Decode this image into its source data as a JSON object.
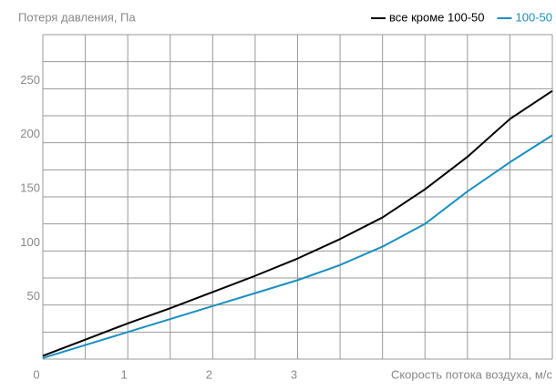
{
  "chart_data": {
    "type": "line",
    "title": "Потеря давления, Па",
    "x_label": "Скорость потока воздуха, м/с",
    "x": [
      0,
      0.5,
      1,
      1.5,
      2,
      2.5,
      3,
      3.5,
      4,
      4.5,
      5,
      5.5,
      6
    ],
    "series": [
      {
        "name": "все кроме 100-50",
        "color": "#000000",
        "values": [
          3,
          18,
          33,
          47,
          62,
          77,
          93,
          111,
          131,
          157,
          187,
          222,
          248
        ]
      },
      {
        "name": "100-50",
        "color": "#1a8fc0",
        "values": [
          1,
          13,
          25,
          37,
          49,
          61,
          73,
          87,
          104,
          125,
          155,
          182,
          207
        ]
      }
    ],
    "xlim": [
      0,
      6
    ],
    "xticks": [
      0,
      1,
      2,
      3
    ],
    "xgrid": [
      0,
      0.5,
      1,
      1.5,
      2,
      2.5,
      3,
      3.5,
      4,
      4.5,
      5,
      5.5,
      6
    ],
    "ylim": [
      0,
      300
    ],
    "yticks": [
      50,
      100,
      150,
      200,
      250
    ],
    "ygrid": [
      0,
      25,
      50,
      75,
      100,
      125,
      150,
      175,
      200,
      225,
      250,
      275,
      300
    ],
    "grid": true,
    "legend": "top-right"
  }
}
